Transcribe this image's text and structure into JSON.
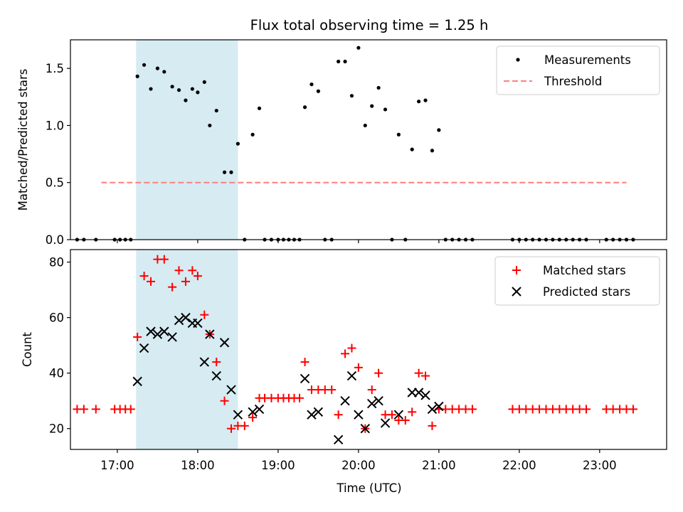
{
  "figure": {
    "title": "Flux total observing time = 1.25 h",
    "xlabel": "Time (UTC)"
  },
  "colors": {
    "measurements": "#000000",
    "threshold": "#ff7f7f",
    "matched": "#ff0000",
    "predicted": "#000000",
    "shaded_span": "#add8e6"
  },
  "chart_data": [
    {
      "type": "scatter",
      "panel": "top",
      "ylabel": "Matched/Predicted stars",
      "xlim": [
        "16:25",
        "23:50"
      ],
      "ylim": [
        0,
        1.75
      ],
      "yticks": [
        0.0,
        0.5,
        1.0,
        1.5
      ],
      "ytick_labels": [
        "0.0",
        "0.5",
        "1.0",
        "1.5"
      ],
      "shaded_span": [
        "17:14",
        "18:30"
      ],
      "legend_location": "upper right",
      "threshold": {
        "name": "Threshold",
        "y": 0.5,
        "x_range": [
          "16:48",
          "23:20"
        ],
        "style": "dashed"
      },
      "series": [
        {
          "name": "Measurements",
          "marker": "dot",
          "points": [
            [
              "16:30",
              0
            ],
            [
              "16:35",
              0
            ],
            [
              "16:44",
              0
            ],
            [
              "16:58",
              0
            ],
            [
              "17:02",
              0
            ],
            [
              "17:06",
              0
            ],
            [
              "17:10",
              0
            ],
            [
              "17:15",
              1.43
            ],
            [
              "17:20",
              1.53
            ],
            [
              "17:25",
              1.32
            ],
            [
              "17:30",
              1.5
            ],
            [
              "17:35",
              1.47
            ],
            [
              "17:41",
              1.34
            ],
            [
              "17:46",
              1.31
            ],
            [
              "17:51",
              1.22
            ],
            [
              "17:56",
              1.32
            ],
            [
              "17:60",
              1.29
            ],
            [
              "18:05",
              1.38
            ],
            [
              "18:09",
              1.0
            ],
            [
              "18:14",
              1.13
            ],
            [
              "18:20",
              0.59
            ],
            [
              "18:25",
              0.59
            ],
            [
              "18:30",
              0.84
            ],
            [
              "18:35",
              0
            ],
            [
              "18:41",
              0.92
            ],
            [
              "18:46",
              1.15
            ],
            [
              "18:50",
              0
            ],
            [
              "18:55",
              0
            ],
            [
              "19:00",
              0
            ],
            [
              "19:04",
              0
            ],
            [
              "19:08",
              0
            ],
            [
              "19:12",
              0
            ],
            [
              "19:16",
              0
            ],
            [
              "19:20",
              1.16
            ],
            [
              "19:25",
              1.36
            ],
            [
              "19:30",
              1.3
            ],
            [
              "19:35",
              0
            ],
            [
              "19:40",
              0
            ],
            [
              "19:45",
              1.56
            ],
            [
              "19:50",
              1.56
            ],
            [
              "19:55",
              1.26
            ],
            [
              "20:00",
              1.68
            ],
            [
              "20:05",
              1.0
            ],
            [
              "20:10",
              1.17
            ],
            [
              "20:15",
              1.33
            ],
            [
              "20:20",
              1.14
            ],
            [
              "20:25",
              0
            ],
            [
              "20:30",
              0.92
            ],
            [
              "20:35",
              0
            ],
            [
              "20:40",
              0.79
            ],
            [
              "20:45",
              1.21
            ],
            [
              "20:50",
              1.22
            ],
            [
              "20:55",
              0.78
            ],
            [
              "21:00",
              0.96
            ],
            [
              "21:05",
              0
            ],
            [
              "21:10",
              0
            ],
            [
              "21:15",
              0
            ],
            [
              "21:20",
              0
            ],
            [
              "21:25",
              0
            ],
            [
              "21:55",
              0
            ],
            [
              "22:00",
              0
            ],
            [
              "22:05",
              0
            ],
            [
              "22:10",
              0
            ],
            [
              "22:15",
              0
            ],
            [
              "22:20",
              0
            ],
            [
              "22:25",
              0
            ],
            [
              "22:30",
              0
            ],
            [
              "22:35",
              0
            ],
            [
              "22:40",
              0
            ],
            [
              "22:45",
              0
            ],
            [
              "22:50",
              0
            ],
            [
              "23:05",
              0
            ],
            [
              "23:10",
              0
            ],
            [
              "23:15",
              0
            ],
            [
              "23:20",
              0
            ],
            [
              "23:25",
              0
            ]
          ]
        }
      ]
    },
    {
      "type": "scatter",
      "panel": "bottom",
      "ylabel": "Count",
      "xlabel": "Time (UTC)",
      "xlim": [
        "16:25",
        "23:50"
      ],
      "ylim": [
        12.5,
        84.5
      ],
      "yticks": [
        20,
        40,
        60,
        80
      ],
      "ytick_labels": [
        "20",
        "40",
        "60",
        "80"
      ],
      "xticks": [
        "17:00",
        "18:00",
        "19:00",
        "20:00",
        "21:00",
        "22:00",
        "23:00"
      ],
      "xtick_labels": [
        "17:00",
        "18:00",
        "19:00",
        "20:00",
        "21:00",
        "22:00",
        "23:00"
      ],
      "shaded_span": [
        "17:14",
        "18:30"
      ],
      "legend_location": "upper right",
      "series": [
        {
          "name": "Matched stars",
          "marker": "plus",
          "points": [
            [
              "16:30",
              27
            ],
            [
              "16:35",
              27
            ],
            [
              "16:44",
              27
            ],
            [
              "16:58",
              27
            ],
            [
              "17:02",
              27
            ],
            [
              "17:06",
              27
            ],
            [
              "17:10",
              27
            ],
            [
              "17:15",
              53
            ],
            [
              "17:20",
              75
            ],
            [
              "17:25",
              73
            ],
            [
              "17:30",
              81
            ],
            [
              "17:35",
              81
            ],
            [
              "17:41",
              71
            ],
            [
              "17:46",
              77
            ],
            [
              "17:51",
              73
            ],
            [
              "17:56",
              77
            ],
            [
              "17:60",
              75
            ],
            [
              "18:05",
              61
            ],
            [
              "18:09",
              54
            ],
            [
              "18:14",
              44
            ],
            [
              "18:20",
              30
            ],
            [
              "18:25",
              20
            ],
            [
              "18:30",
              21
            ],
            [
              "18:35",
              21
            ],
            [
              "18:41",
              24
            ],
            [
              "18:46",
              31
            ],
            [
              "18:50",
              31
            ],
            [
              "18:55",
              31
            ],
            [
              "19:00",
              31
            ],
            [
              "19:04",
              31
            ],
            [
              "19:08",
              31
            ],
            [
              "19:12",
              31
            ],
            [
              "19:16",
              31
            ],
            [
              "19:20",
              44
            ],
            [
              "19:25",
              34
            ],
            [
              "19:30",
              34
            ],
            [
              "19:35",
              34
            ],
            [
              "19:40",
              34
            ],
            [
              "19:45",
              25
            ],
            [
              "19:50",
              47
            ],
            [
              "19:55",
              49
            ],
            [
              "20:00",
              42
            ],
            [
              "20:05",
              20
            ],
            [
              "20:10",
              34
            ],
            [
              "20:15",
              40
            ],
            [
              "20:20",
              25
            ],
            [
              "20:25",
              25
            ],
            [
              "20:30",
              23
            ],
            [
              "20:35",
              23
            ],
            [
              "20:40",
              26
            ],
            [
              "20:45",
              40
            ],
            [
              "20:50",
              39
            ],
            [
              "20:55",
              21
            ],
            [
              "21:00",
              27
            ],
            [
              "21:05",
              27
            ],
            [
              "21:10",
              27
            ],
            [
              "21:15",
              27
            ],
            [
              "21:20",
              27
            ],
            [
              "21:25",
              27
            ],
            [
              "21:55",
              27
            ],
            [
              "22:00",
              27
            ],
            [
              "22:05",
              27
            ],
            [
              "22:10",
              27
            ],
            [
              "22:15",
              27
            ],
            [
              "22:20",
              27
            ],
            [
              "22:25",
              27
            ],
            [
              "22:30",
              27
            ],
            [
              "22:35",
              27
            ],
            [
              "22:40",
              27
            ],
            [
              "22:45",
              27
            ],
            [
              "22:50",
              27
            ],
            [
              "23:05",
              27
            ],
            [
              "23:10",
              27
            ],
            [
              "23:15",
              27
            ],
            [
              "23:20",
              27
            ],
            [
              "23:25",
              27
            ]
          ]
        },
        {
          "name": "Predicted stars",
          "marker": "x",
          "points": [
            [
              "17:15",
              37
            ],
            [
              "17:20",
              49
            ],
            [
              "17:25",
              55
            ],
            [
              "17:30",
              54
            ],
            [
              "17:35",
              55
            ],
            [
              "17:41",
              53
            ],
            [
              "17:46",
              59
            ],
            [
              "17:51",
              60
            ],
            [
              "17:56",
              58
            ],
            [
              "17:60",
              58
            ],
            [
              "18:05",
              44
            ],
            [
              "18:09",
              54
            ],
            [
              "18:14",
              39
            ],
            [
              "18:20",
              51
            ],
            [
              "18:25",
              34
            ],
            [
              "18:30",
              25
            ],
            [
              "18:41",
              26
            ],
            [
              "18:46",
              27
            ],
            [
              "19:20",
              38
            ],
            [
              "19:25",
              25
            ],
            [
              "19:30",
              26
            ],
            [
              "19:45",
              16
            ],
            [
              "19:50",
              30
            ],
            [
              "19:55",
              39
            ],
            [
              "20:00",
              25
            ],
            [
              "20:05",
              20
            ],
            [
              "20:10",
              29
            ],
            [
              "20:15",
              30
            ],
            [
              "20:20",
              22
            ],
            [
              "20:30",
              25
            ],
            [
              "20:40",
              33
            ],
            [
              "20:45",
              33
            ],
            [
              "20:50",
              32
            ],
            [
              "20:55",
              27
            ],
            [
              "21:00",
              28
            ]
          ]
        }
      ]
    }
  ]
}
